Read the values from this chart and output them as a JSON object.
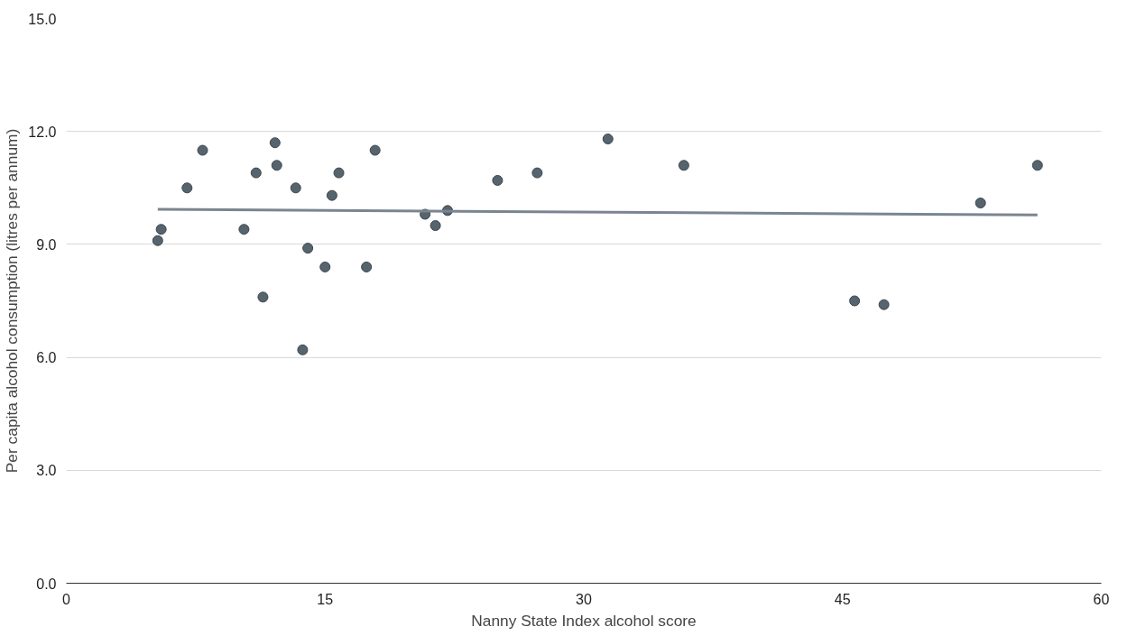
{
  "chart_data": {
    "type": "scatter",
    "xlabel": "Nanny State Index alcohol score",
    "ylabel": "Per capita alcohol consumption (litres per annum)",
    "xlim": [
      0,
      60
    ],
    "xticks": [
      0,
      15,
      30,
      45,
      60
    ],
    "ylim": [
      0,
      15
    ],
    "yticks": [
      {
        "value": 0,
        "label": "0.0"
      },
      {
        "value": 3,
        "label": "3.0"
      },
      {
        "value": 6,
        "label": "6.0"
      },
      {
        "value": 9,
        "label": "9.0"
      },
      {
        "value": 12,
        "label": "12.0"
      },
      {
        "value": 15,
        "label": "15.0"
      }
    ],
    "grid": "y",
    "series": [
      {
        "marker": "circle",
        "color": "#56646e",
        "x": [
          5.3,
          5.5,
          7.0,
          7.9,
          10.3,
          11.0,
          11.4,
          12.1,
          12.2,
          13.3,
          13.7,
          14.0,
          15.0,
          15.4,
          15.8,
          17.4,
          17.9,
          20.8,
          21.4,
          22.1,
          25.0,
          27.3,
          31.4,
          35.8,
          45.7,
          47.4,
          53.0,
          56.3
        ],
        "values": [
          9.1,
          9.4,
          10.5,
          11.5,
          9.4,
          10.9,
          7.6,
          11.7,
          11.1,
          10.5,
          6.2,
          8.9,
          8.4,
          10.3,
          10.9,
          8.4,
          11.5,
          9.8,
          9.5,
          9.9,
          10.7,
          10.9,
          11.8,
          11.1,
          7.5,
          7.4,
          10.1,
          11.1
        ]
      },
      {
        "type": "line",
        "color": "#7a8591",
        "x": [
          5.3,
          56.3
        ],
        "values": [
          9.93,
          9.78
        ]
      }
    ]
  }
}
